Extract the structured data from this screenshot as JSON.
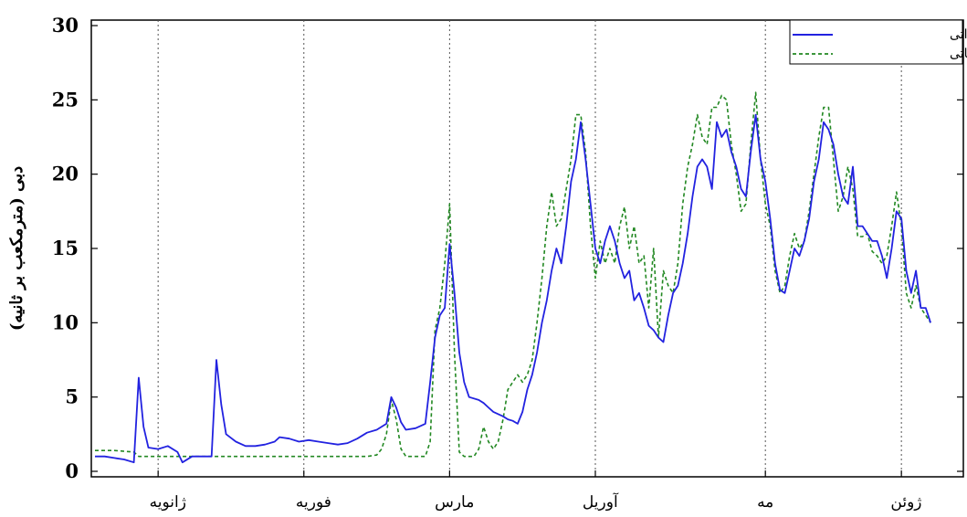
{
  "chart_data": {
    "type": "line",
    "title": "",
    "xlabel": "",
    "ylabel": "دبی (مترمکعب بر ثانیه)",
    "ylim": [
      0,
      30
    ],
    "xlim": [
      0,
      168
    ],
    "yticks": [
      0,
      5,
      10,
      15,
      20,
      25,
      30
    ],
    "grid": "vertical dotted lines at month boundaries",
    "legend": {
      "placement": "top-right"
    },
    "month_boundaries": [
      13,
      43,
      73,
      103,
      138,
      166
    ],
    "month_labels": [
      {
        "label": "ژانویه",
        "x": 15
      },
      {
        "label": "فوریه",
        "x": 45
      },
      {
        "label": "مارس",
        "x": 74
      },
      {
        "label": "آوریل",
        "x": 104
      },
      {
        "label": "مه",
        "x": 138
      },
      {
        "label": "ژوئن",
        "x": 167
      }
    ],
    "series": [
      {
        "name": "دبی مشاهداتی",
        "color": "#2222e0",
        "style": "solid",
        "points": [
          [
            0,
            1.0
          ],
          [
            2,
            1.0
          ],
          [
            4,
            0.9
          ],
          [
            6,
            0.8
          ],
          [
            8,
            0.6
          ],
          [
            9,
            6.3
          ],
          [
            10,
            3.0
          ],
          [
            11,
            1.6
          ],
          [
            13,
            1.5
          ],
          [
            15,
            1.7
          ],
          [
            17,
            1.3
          ],
          [
            18,
            0.6
          ],
          [
            20,
            1.0
          ],
          [
            22,
            1.0
          ],
          [
            24,
            1.0
          ],
          [
            25,
            7.5
          ],
          [
            26,
            4.5
          ],
          [
            27,
            2.5
          ],
          [
            29,
            2.0
          ],
          [
            31,
            1.7
          ],
          [
            33,
            1.7
          ],
          [
            35,
            1.8
          ],
          [
            37,
            2.0
          ],
          [
            38,
            2.3
          ],
          [
            40,
            2.2
          ],
          [
            42,
            2.0
          ],
          [
            44,
            2.1
          ],
          [
            46,
            2.0
          ],
          [
            48,
            1.9
          ],
          [
            50,
            1.8
          ],
          [
            52,
            1.9
          ],
          [
            54,
            2.2
          ],
          [
            56,
            2.6
          ],
          [
            58,
            2.8
          ],
          [
            60,
            3.2
          ],
          [
            61,
            5.0
          ],
          [
            62,
            4.3
          ],
          [
            63,
            3.3
          ],
          [
            64,
            2.8
          ],
          [
            66,
            2.9
          ],
          [
            68,
            3.2
          ],
          [
            69,
            6.0
          ],
          [
            70,
            9.0
          ],
          [
            71,
            10.5
          ],
          [
            72,
            11.0
          ],
          [
            73,
            15.3
          ],
          [
            74,
            12.0
          ],
          [
            75,
            8.0
          ],
          [
            76,
            6.0
          ],
          [
            77,
            5.0
          ],
          [
            79,
            4.8
          ],
          [
            80,
            4.6
          ],
          [
            81,
            4.3
          ],
          [
            82,
            4.0
          ],
          [
            84,
            3.7
          ],
          [
            85,
            3.5
          ],
          [
            86,
            3.4
          ],
          [
            87,
            3.2
          ],
          [
            88,
            4.0
          ],
          [
            89,
            5.5
          ],
          [
            90,
            6.5
          ],
          [
            91,
            8.0
          ],
          [
            92,
            10.0
          ],
          [
            93,
            11.5
          ],
          [
            94,
            13.5
          ],
          [
            95,
            15.0
          ],
          [
            96,
            14.0
          ],
          [
            97,
            16.5
          ],
          [
            98,
            19.5
          ],
          [
            99,
            21.0
          ],
          [
            100,
            23.5
          ],
          [
            101,
            21.0
          ],
          [
            102,
            18.0
          ],
          [
            103,
            15.0
          ],
          [
            104,
            14.0
          ],
          [
            105,
            15.5
          ],
          [
            106,
            16.5
          ],
          [
            107,
            15.5
          ],
          [
            108,
            14.0
          ],
          [
            109,
            13.0
          ],
          [
            110,
            13.5
          ],
          [
            111,
            11.5
          ],
          [
            112,
            12.0
          ],
          [
            113,
            11.0
          ],
          [
            114,
            9.8
          ],
          [
            115,
            9.5
          ],
          [
            116,
            9.0
          ],
          [
            117,
            8.7
          ],
          [
            118,
            10.5
          ],
          [
            119,
            12.0
          ],
          [
            120,
            12.5
          ],
          [
            121,
            14.0
          ],
          [
            122,
            16.0
          ],
          [
            123,
            18.5
          ],
          [
            124,
            20.5
          ],
          [
            125,
            21.0
          ],
          [
            126,
            20.5
          ],
          [
            127,
            19.0
          ],
          [
            128,
            23.5
          ],
          [
            129,
            22.5
          ],
          [
            130,
            23.0
          ],
          [
            131,
            21.5
          ],
          [
            132,
            20.5
          ],
          [
            133,
            19.0
          ],
          [
            134,
            18.5
          ],
          [
            135,
            21.5
          ],
          [
            136,
            24.0
          ],
          [
            137,
            21.0
          ],
          [
            138,
            19.5
          ],
          [
            139,
            17.0
          ],
          [
            140,
            14.0
          ],
          [
            141,
            12.2
          ],
          [
            142,
            12.0
          ],
          [
            143,
            13.5
          ],
          [
            144,
            15.0
          ],
          [
            145,
            14.5
          ],
          [
            146,
            15.5
          ],
          [
            147,
            17.0
          ],
          [
            148,
            19.5
          ],
          [
            149,
            21.0
          ],
          [
            150,
            23.5
          ],
          [
            151,
            23.0
          ],
          [
            152,
            22.0
          ],
          [
            153,
            20.0
          ],
          [
            154,
            18.5
          ],
          [
            155,
            18.0
          ],
          [
            156,
            20.5
          ],
          [
            157,
            16.5
          ],
          [
            158,
            16.5
          ],
          [
            159,
            16.0
          ],
          [
            160,
            15.5
          ],
          [
            161,
            15.5
          ],
          [
            162,
            14.5
          ],
          [
            163,
            13.0
          ],
          [
            164,
            15.0
          ],
          [
            165,
            17.5
          ],
          [
            166,
            17.0
          ],
          [
            167,
            13.5
          ],
          [
            168,
            12.0
          ],
          [
            169,
            13.5
          ],
          [
            170,
            11.0
          ],
          [
            171,
            11.0
          ],
          [
            172,
            10.0
          ]
        ]
      },
      {
        "name": "دبی محاسباتی",
        "color": "#228822",
        "style": "dashed",
        "points": [
          [
            0,
            1.4
          ],
          [
            4,
            1.4
          ],
          [
            8,
            1.3
          ],
          [
            9,
            1.0
          ],
          [
            12,
            1.0
          ],
          [
            20,
            1.0
          ],
          [
            30,
            1.0
          ],
          [
            40,
            1.0
          ],
          [
            50,
            1.0
          ],
          [
            56,
            1.0
          ],
          [
            58,
            1.1
          ],
          [
            59,
            1.5
          ],
          [
            60,
            2.5
          ],
          [
            61,
            4.8
          ],
          [
            62,
            3.5
          ],
          [
            63,
            1.5
          ],
          [
            64,
            1.0
          ],
          [
            66,
            1.0
          ],
          [
            68,
            1.0
          ],
          [
            69,
            2.0
          ],
          [
            70,
            9.5
          ],
          [
            71,
            11.0
          ],
          [
            72,
            14.0
          ],
          [
            73,
            18.0
          ],
          [
            74,
            8.0
          ],
          [
            75,
            1.3
          ],
          [
            76,
            1.0
          ],
          [
            78,
            1.0
          ],
          [
            79,
            1.5
          ],
          [
            80,
            3.0
          ],
          [
            81,
            2.0
          ],
          [
            82,
            1.5
          ],
          [
            83,
            2.0
          ],
          [
            84,
            3.5
          ],
          [
            85,
            5.5
          ],
          [
            86,
            6.0
          ],
          [
            87,
            6.5
          ],
          [
            88,
            6.0
          ],
          [
            89,
            6.5
          ],
          [
            90,
            7.5
          ],
          [
            91,
            10.0
          ],
          [
            92,
            13.0
          ],
          [
            93,
            16.5
          ],
          [
            94,
            18.8
          ],
          [
            95,
            16.5
          ],
          [
            96,
            17.0
          ],
          [
            97,
            19.0
          ],
          [
            98,
            21.0
          ],
          [
            99,
            24.0
          ],
          [
            100,
            24.0
          ],
          [
            101,
            21.5
          ],
          [
            102,
            16.5
          ],
          [
            103,
            13.0
          ],
          [
            104,
            15.5
          ],
          [
            105,
            14.0
          ],
          [
            106,
            15.0
          ],
          [
            107,
            14.0
          ],
          [
            108,
            16.5
          ],
          [
            109,
            17.8
          ],
          [
            110,
            15.0
          ],
          [
            111,
            16.5
          ],
          [
            112,
            14.0
          ],
          [
            113,
            14.5
          ],
          [
            114,
            11.0
          ],
          [
            115,
            15.0
          ],
          [
            116,
            9.0
          ],
          [
            117,
            13.5
          ],
          [
            118,
            12.5
          ],
          [
            119,
            12.0
          ],
          [
            120,
            14.0
          ],
          [
            121,
            18.0
          ],
          [
            122,
            20.5
          ],
          [
            123,
            22.0
          ],
          [
            124,
            24.0
          ],
          [
            125,
            22.5
          ],
          [
            126,
            22.0
          ],
          [
            127,
            24.5
          ],
          [
            128,
            24.5
          ],
          [
            129,
            25.3
          ],
          [
            130,
            25.0
          ],
          [
            131,
            22.0
          ],
          [
            132,
            20.0
          ],
          [
            133,
            17.5
          ],
          [
            134,
            18.0
          ],
          [
            135,
            22.0
          ],
          [
            136,
            25.5
          ],
          [
            137,
            21.0
          ],
          [
            138,
            18.0
          ],
          [
            139,
            16.5
          ],
          [
            140,
            13.5
          ],
          [
            141,
            12.0
          ],
          [
            142,
            12.5
          ],
          [
            143,
            14.5
          ],
          [
            144,
            16.0
          ],
          [
            145,
            15.0
          ],
          [
            146,
            15.5
          ],
          [
            147,
            17.5
          ],
          [
            148,
            20.0
          ],
          [
            149,
            22.5
          ],
          [
            150,
            24.5
          ],
          [
            151,
            24.5
          ],
          [
            152,
            21.0
          ],
          [
            153,
            17.5
          ],
          [
            154,
            18.5
          ],
          [
            155,
            20.5
          ],
          [
            156,
            19.0
          ],
          [
            157,
            15.8
          ],
          [
            158,
            15.8
          ],
          [
            159,
            16.0
          ],
          [
            160,
            14.8
          ],
          [
            161,
            14.5
          ],
          [
            162,
            14.0
          ],
          [
            163,
            14.5
          ],
          [
            164,
            16.5
          ],
          [
            165,
            18.8
          ],
          [
            166,
            16.5
          ],
          [
            167,
            12.0
          ],
          [
            168,
            11.0
          ],
          [
            169,
            12.5
          ],
          [
            170,
            11.0
          ],
          [
            171,
            10.5
          ],
          [
            172,
            10.0
          ]
        ]
      }
    ]
  }
}
